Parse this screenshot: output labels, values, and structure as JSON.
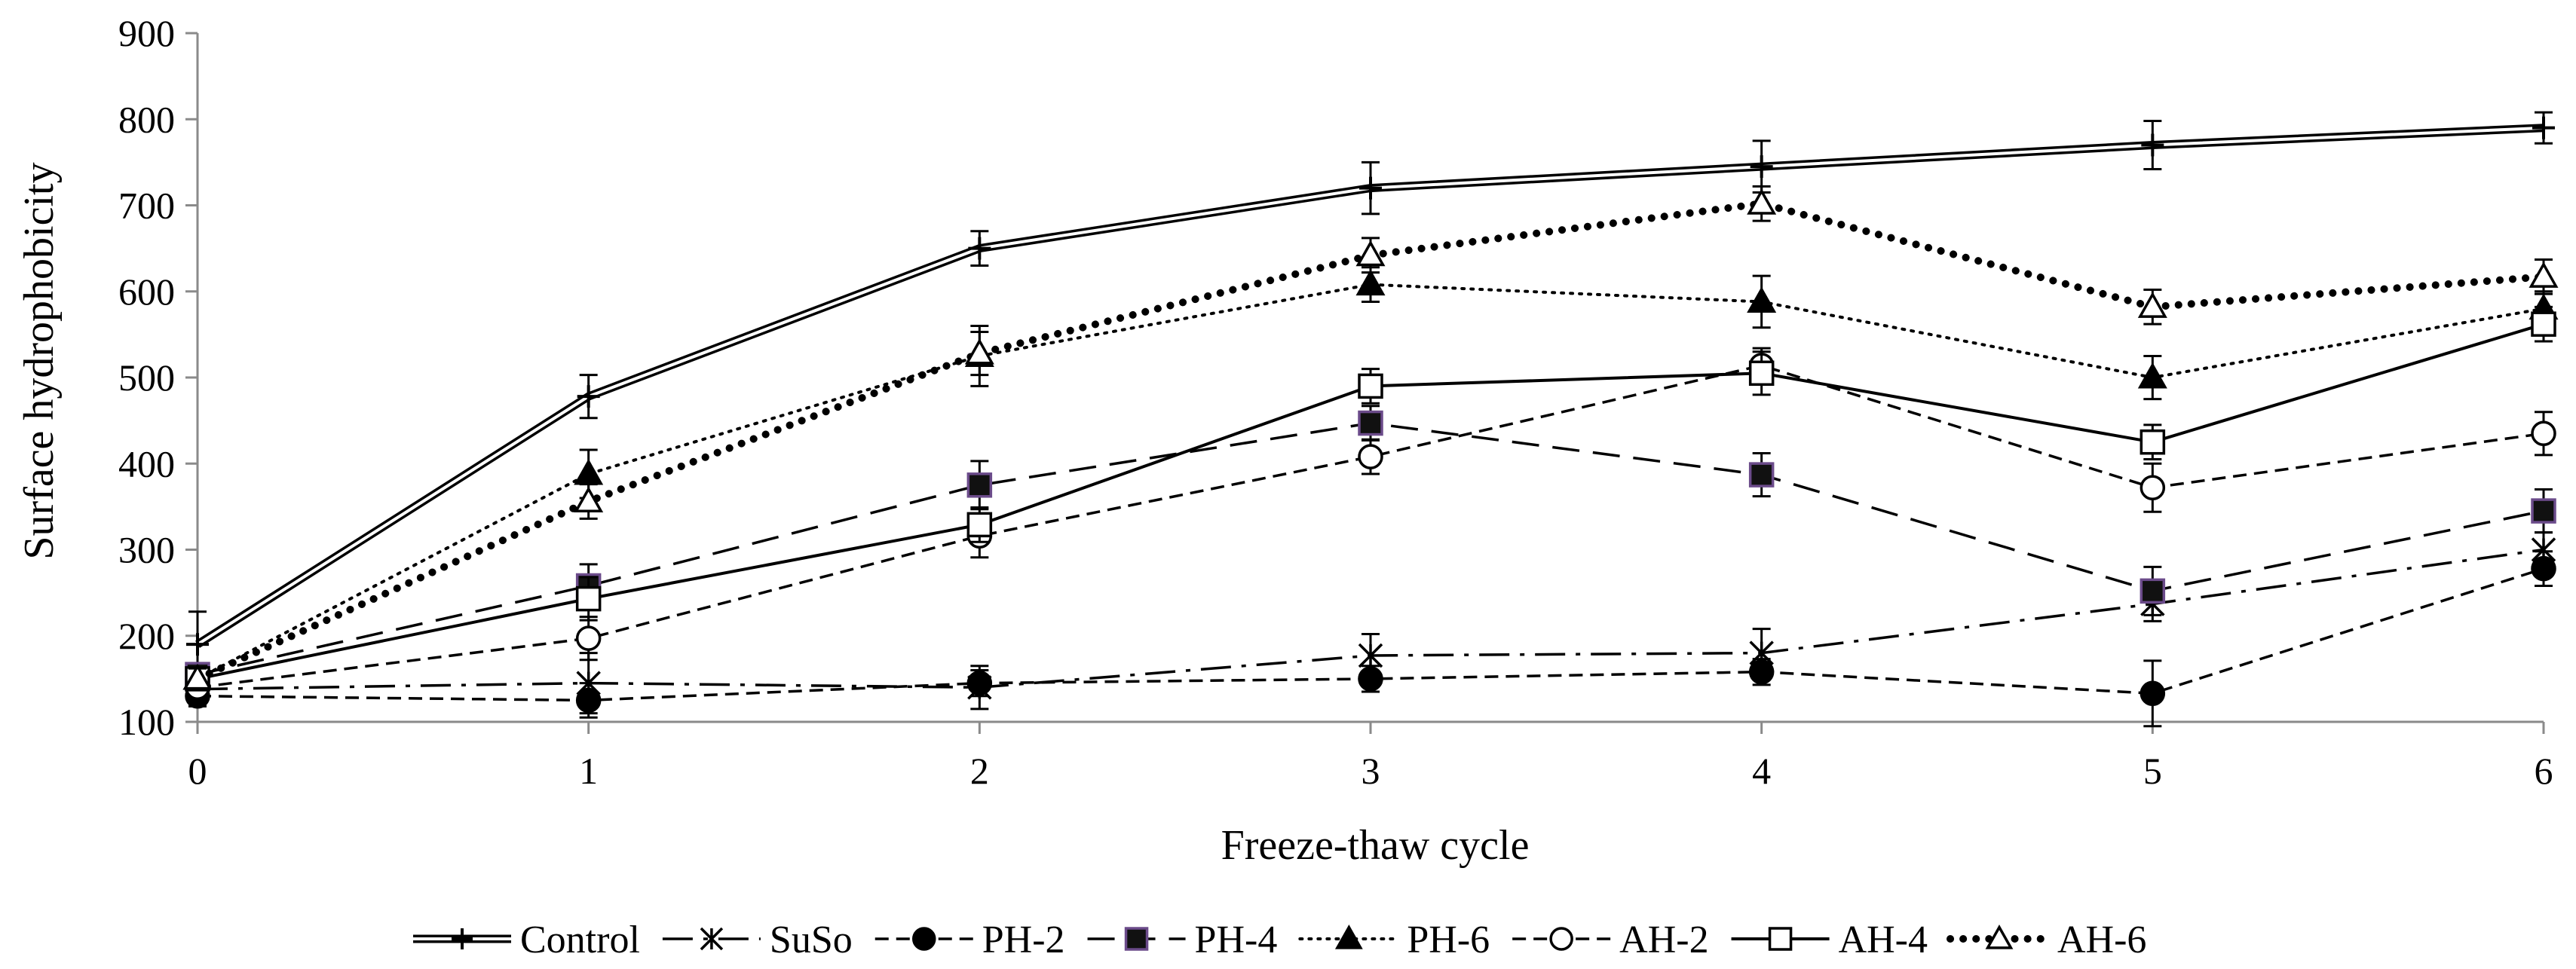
{
  "chart_data": {
    "type": "line",
    "title": "",
    "xlabel": "Freeze-thaw cycle",
    "ylabel": "Surface hydrophobicity",
    "x": [
      0,
      1,
      2,
      3,
      4,
      5,
      6
    ],
    "x_tick_labels": [
      "0",
      "1",
      "2",
      "3",
      "4",
      "5",
      "6"
    ],
    "ylim": [
      100,
      900
    ],
    "y_ticks": [
      100,
      200,
      300,
      400,
      500,
      600,
      700,
      800,
      900
    ],
    "y_tick_labels": [
      "100",
      "200",
      "300",
      "400",
      "500",
      "600",
      "700",
      "800",
      "900"
    ],
    "grid": false,
    "legend_position": "bottom",
    "series": [
      {
        "name": "Control",
        "values": [
          190,
          478,
          650,
          720,
          745,
          770,
          790
        ],
        "errors": [
          38,
          25,
          20,
          30,
          30,
          28,
          18
        ],
        "line": "double",
        "marker": "plus"
      },
      {
        "name": "SuSo",
        "values": [
          138,
          145,
          140,
          177,
          180,
          237,
          300
        ],
        "errors": [
          12,
          35,
          25,
          25,
          28,
          20,
          20
        ],
        "line": "dashdot",
        "marker": "asterisk"
      },
      {
        "name": "PH-2",
        "values": [
          130,
          125,
          145,
          150,
          158,
          133,
          278
        ],
        "errors": [
          12,
          20,
          15,
          15,
          15,
          38,
          20
        ],
        "line": "dashed",
        "marker": "filled-circle"
      },
      {
        "name": "PH-4",
        "values": [
          155,
          258,
          375,
          447,
          387,
          252,
          345
        ],
        "errors": [
          12,
          25,
          28,
          20,
          25,
          28,
          25
        ],
        "line": "long-dashed",
        "marker": "filled-square"
      },
      {
        "name": "PH-6",
        "values": [
          150,
          388,
          525,
          608,
          588,
          500,
          580
        ],
        "errors": [
          12,
          28,
          35,
          20,
          30,
          25,
          20
        ],
        "line": "dotted",
        "marker": "filled-triangle"
      },
      {
        "name": "AH-2",
        "values": [
          140,
          197,
          316,
          408,
          514,
          372,
          435
        ],
        "errors": [
          12,
          25,
          25,
          20,
          20,
          28,
          25
        ],
        "line": "dashed",
        "marker": "open-circle"
      },
      {
        "name": "AH-4",
        "values": [
          150,
          243,
          329,
          490,
          505,
          425,
          562
        ],
        "errors": [
          12,
          25,
          20,
          20,
          25,
          20,
          20
        ],
        "line": "solid",
        "marker": "open-square"
      },
      {
        "name": "AH-6",
        "values": [
          150,
          356,
          528,
          642,
          702,
          582,
          617
        ],
        "errors": [
          12,
          20,
          25,
          20,
          20,
          20,
          20
        ],
        "line": "heavy-dotted",
        "marker": "open-triangle"
      }
    ]
  }
}
